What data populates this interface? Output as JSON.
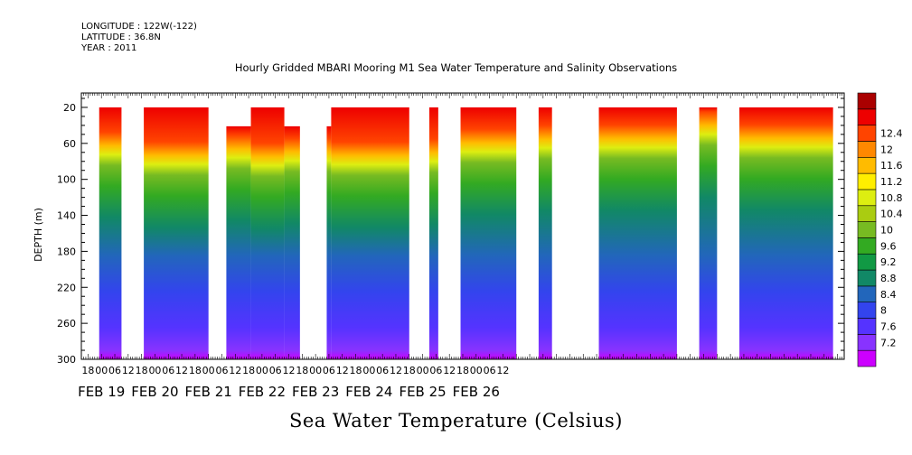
{
  "header": {
    "longitude": "LONGITUDE : 122W(-122)",
    "latitude": "LATITUDE : 36.8N",
    "year": "YEAR : 2011"
  },
  "chart_data": {
    "type": "heatmap",
    "title": "Hourly Gridded MBARI Mooring M1 Sea Water Temperature and Salinity Observations",
    "variable_label": "Sea Water Temperature (Celsius)",
    "ylabel": "DEPTH (m)",
    "y_ticks": [
      20,
      60,
      100,
      140,
      180,
      220,
      260,
      300
    ],
    "ylim": [
      300,
      4
    ],
    "x_hour_ticks": [
      "18",
      "00",
      "06",
      "12",
      "18",
      "00",
      "06",
      "12",
      "18",
      "00",
      "06",
      "12",
      "18",
      "00",
      "06",
      "12",
      "18",
      "00",
      "06",
      "12",
      "18",
      "00",
      "06",
      "12",
      "18",
      "00",
      "06",
      "12",
      "18",
      "00",
      "06",
      "12"
    ],
    "x_date_labels": [
      "FEB 19",
      "FEB 20",
      "FEB 21",
      "FEB 22",
      "FEB 23",
      "FEB 24",
      "FEB 25",
      "FEB 26"
    ],
    "x_range_hours": [
      -9,
      333
    ],
    "colorbar_levels": [
      7.2,
      7.6,
      8,
      8.4,
      8.8,
      9.2,
      9.6,
      10,
      10.4,
      10.8,
      11.2,
      11.6,
      12,
      12.4
    ],
    "colorbar_colors": [
      "#cc00ff",
      "#8833ff",
      "#5533ff",
      "#3344ee",
      "#2266bb",
      "#118866",
      "#119944",
      "#33aa22",
      "#77bb22",
      "#aacc11",
      "#ddee11",
      "#ffee00",
      "#ffbb00",
      "#ff8800",
      "#ff4400",
      "#ee0000",
      "#aa0000"
    ],
    "data_segments": [
      {
        "start_hour": -1,
        "end_hour": 9,
        "top_depth": 20
      },
      {
        "start_hour": 19,
        "end_hour": 48,
        "top_depth": 20
      },
      {
        "start_hour": 56,
        "end_hour": 67,
        "top_depth": 41
      },
      {
        "start_hour": 67,
        "end_hour": 82,
        "top_depth": 20
      },
      {
        "start_hour": 82,
        "end_hour": 89,
        "top_depth": 41
      },
      {
        "start_hour": 101,
        "end_hour": 103,
        "top_depth": 41
      },
      {
        "start_hour": 103,
        "end_hour": 138,
        "top_depth": 20
      },
      {
        "start_hour": 147,
        "end_hour": 151,
        "top_depth": 20
      },
      {
        "start_hour": 161,
        "end_hour": 186,
        "top_depth": 20
      },
      {
        "start_hour": 196,
        "end_hour": 202,
        "top_depth": 20
      },
      {
        "start_hour": 223,
        "end_hour": 258,
        "top_depth": 20
      },
      {
        "start_hour": 268,
        "end_hour": 276,
        "top_depth": 20
      },
      {
        "start_hour": 286,
        "end_hour": 328,
        "top_depth": 20
      }
    ],
    "thermocline_depth_samples": [
      {
        "hour": 0,
        "depth": 70
      },
      {
        "hour": 8,
        "depth": 75
      },
      {
        "hour": 22,
        "depth": 70
      },
      {
        "hour": 30,
        "depth": 85
      },
      {
        "hour": 40,
        "depth": 80
      },
      {
        "hour": 46,
        "depth": 100
      },
      {
        "hour": 60,
        "depth": 75
      },
      {
        "hour": 75,
        "depth": 85
      },
      {
        "hour": 88,
        "depth": 78
      },
      {
        "hour": 110,
        "depth": 80
      },
      {
        "hour": 125,
        "depth": 85
      },
      {
        "hour": 150,
        "depth": 80
      },
      {
        "hour": 170,
        "depth": 70
      },
      {
        "hour": 200,
        "depth": 65
      },
      {
        "hour": 225,
        "depth": 70
      },
      {
        "hour": 240,
        "depth": 65
      },
      {
        "hour": 255,
        "depth": 55
      },
      {
        "hour": 272,
        "depth": 50
      },
      {
        "hour": 290,
        "depth": 60
      },
      {
        "hour": 310,
        "depth": 65
      },
      {
        "hour": 325,
        "depth": 55
      }
    ]
  }
}
